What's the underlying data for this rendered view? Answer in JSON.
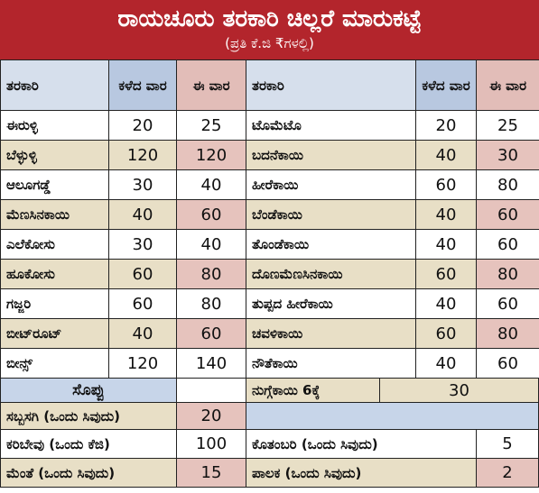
{
  "header": {
    "title": "ರಾಯಚೂರು ತರಕಾರಿ ಚಿಲ್ಲರೆ ಮಾರುಕಟ್ಟೆ",
    "subtitle": "(ಪ್ರತಿ ಕೆ.ಜಿ ₹ಗಳಲ್ಲಿ)"
  },
  "table": {
    "columns": [
      "ತರಕಾರಿ",
      "ಕಳೆದ ವಾರ",
      "ಈ ವಾರ",
      "ತರಕಾರಿ",
      "ಕಳೆದ ವಾರ",
      "ಈ ವಾರ"
    ],
    "rows": [
      [
        "ಈರುಳ್ಳಿ",
        20,
        25,
        "ಟೊಮೆಟೊ",
        20,
        25
      ],
      [
        "ಬೆಳ್ಳುಳ್ಳಿ",
        120,
        120,
        "ಬದನೆಕಾಯಿ",
        40,
        30
      ],
      [
        "ಆಲೂಗಡ್ಡೆ",
        30,
        40,
        "ಹೀರೆಕಾಯಿ",
        60,
        80
      ],
      [
        "ಮೆಣಸಿನಕಾಯಿ",
        40,
        60,
        "ಬೆಂಡೆಕಾಯಿ",
        40,
        60
      ],
      [
        "ಎಲೆಕೋಸು",
        30,
        40,
        "ತೊಂಡೆಕಾಯಿ",
        40,
        60
      ],
      [
        "ಹೂಕೋಸು",
        60,
        80,
        "ದೊಣಮೆಣಸಿನಕಾಯಿ",
        60,
        80
      ],
      [
        "ಗಜ್ಜರಿ",
        60,
        80,
        "ತುಪ್ಪದ ಹೀರೆಕಾಯಿ",
        40,
        60
      ],
      [
        "ಬೀಟ್‌ರೂಟ್",
        40,
        60,
        "ಚವಳಿಕಾಯಿ",
        60,
        80
      ],
      [
        "ಬೀನ್ಸ್",
        120,
        140,
        "ನೌತೆಕಾಯಿ",
        40,
        60
      ]
    ]
  },
  "greens": {
    "title": "ಸೊಪ್ಪು",
    "drumstick": {
      "name": "ನುಗ್ಗೆಕಾಯಿ 6ಕ್ಕೆ",
      "price": 30
    },
    "rows": [
      {
        "name": "ಸಬ್ಬಸಗಿ (ಒಂದು ಸಿವುದು)",
        "price": 20
      },
      {
        "name": "ಕರಿಬೇವು (ಒಂದು ಕೆಜಿ)",
        "price": 100,
        "name2": "ಕೊತಂಬರಿ (ಒಂದು ಸಿವುದು)",
        "price2": 5
      },
      {
        "name": "ಮೆಂತೆ (ಒಂದು ಸಿವುದು)",
        "price": 15,
        "name2": "ಪಾಲಕ (ಒಂದು ಸಿವುದು)",
        "price2": 2
      }
    ]
  }
}
